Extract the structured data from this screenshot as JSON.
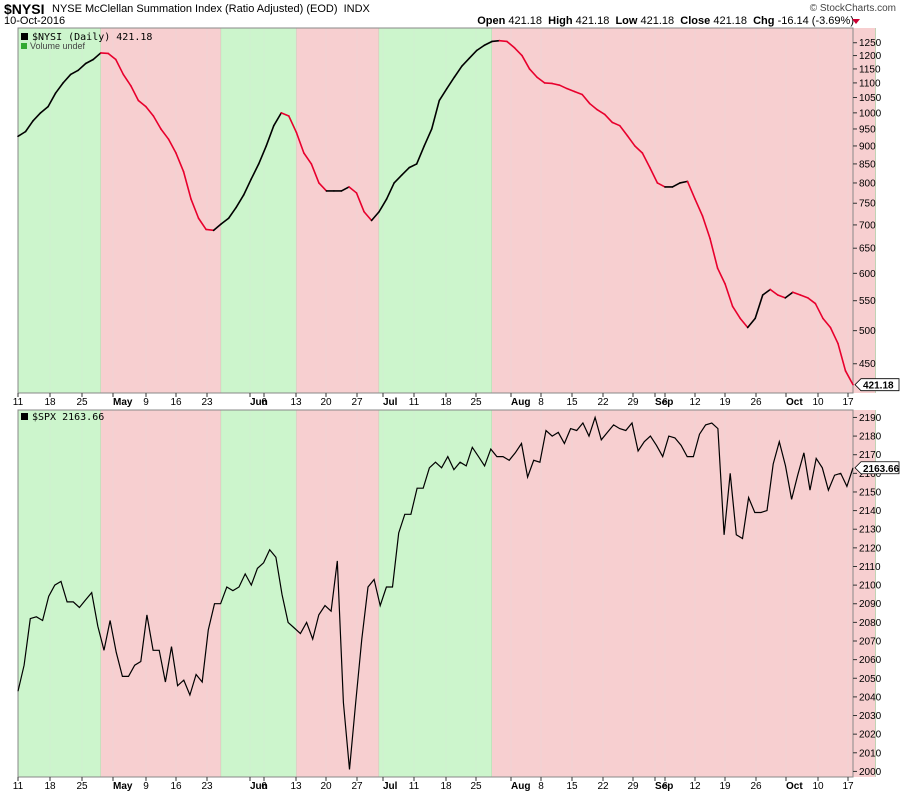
{
  "header": {
    "symbol": "$NYSI",
    "description": "NYSE McClellan Summation Index (Ratio Adjusted) (EOD)  INDX",
    "brand": "© StockCharts.com",
    "date": "10-Oct-2016",
    "open_label": "Open",
    "open": "421.18",
    "high_label": "High",
    "high": "421.18",
    "low_label": "Low",
    "low": "421.18",
    "close_label": "Close",
    "close": "421.18",
    "chg_label": "Chg",
    "chg": "-16.14 (-3.69%)"
  },
  "colors": {
    "green_band": "#ccf5cc",
    "red_band": "#f7cfd0",
    "up_line": "#000000",
    "down_line": "#e8002d",
    "spx_line": "#000000"
  },
  "x_ticks": [
    "11",
    "18",
    "25",
    "May",
    "9",
    "16",
    "23",
    "Jun",
    "6",
    "13",
    "20",
    "27",
    "Jul",
    "11",
    "18",
    "25",
    "Aug",
    "8",
    "15",
    "22",
    "29",
    "Sep",
    "6",
    "12",
    "19",
    "26",
    "Oct",
    "10",
    "17"
  ],
  "chart_data": [
    {
      "type": "line",
      "legend": [
        "$NYSI (Daily) 421.18",
        "Volume undef"
      ],
      "current_value_label": "421.18",
      "y_scale": "log",
      "ylim": [
        410,
        1310
      ],
      "y_ticks": [
        450,
        500,
        550,
        600,
        650,
        700,
        750,
        800,
        850,
        900,
        950,
        1000,
        1050,
        1100,
        1150,
        1200,
        1250
      ],
      "bands": [
        {
          "color": "green",
          "from_index": 0,
          "to_index": 11
        },
        {
          "color": "red",
          "from_index": 11,
          "to_index": 27
        },
        {
          "color": "green",
          "from_index": 27,
          "to_index": 37
        },
        {
          "color": "red",
          "from_index": 37,
          "to_index": 48
        },
        {
          "color": "green",
          "from_index": 48,
          "to_index": 63
        },
        {
          "color": "red",
          "from_index": 63,
          "to_index": 114
        }
      ],
      "values": [
        928,
        942,
        975,
        1000,
        1020,
        1065,
        1100,
        1130,
        1145,
        1170,
        1185,
        1210,
        1208,
        1185,
        1130,
        1090,
        1040,
        1020,
        990,
        950,
        920,
        880,
        830,
        760,
        715,
        690,
        688,
        702,
        715,
        740,
        770,
        810,
        850,
        900,
        960,
        1000,
        990,
        940,
        880,
        850,
        800,
        780,
        780,
        780,
        790,
        775,
        730,
        710,
        730,
        760,
        800,
        820,
        840,
        850,
        900,
        950,
        1040,
        1080,
        1120,
        1160,
        1190,
        1220,
        1240,
        1255,
        1258,
        1255,
        1230,
        1200,
        1150,
        1120,
        1100,
        1098,
        1092,
        1080,
        1070,
        1060,
        1030,
        1010,
        995,
        970,
        960,
        930,
        900,
        880,
        840,
        800,
        790,
        790,
        800,
        804,
        760,
        720,
        670,
        610,
        580,
        540,
        520,
        505,
        520,
        560,
        570,
        560,
        555,
        565,
        560,
        555,
        545,
        520,
        505,
        480,
        440,
        421
      ]
    },
    {
      "type": "line",
      "legend": [
        "$SPX 2163.66"
      ],
      "current_value_label": "2163.66",
      "ylim": [
        1997,
        2194
      ],
      "y_ticks": [
        2000,
        2010,
        2020,
        2030,
        2040,
        2050,
        2060,
        2070,
        2080,
        2090,
        2100,
        2110,
        2120,
        2130,
        2140,
        2150,
        2160,
        2170,
        2180,
        2190
      ],
      "values": [
        2043,
        2057,
        2082,
        2083,
        2081,
        2094,
        2100,
        2102,
        2091,
        2091,
        2088,
        2092,
        2096,
        2078,
        2065,
        2081,
        2064,
        2051,
        2051,
        2057,
        2059,
        2084,
        2065,
        2065,
        2048,
        2067,
        2046,
        2049,
        2041,
        2052,
        2048,
        2076,
        2090,
        2090,
        2099,
        2097,
        2099,
        2106,
        2100,
        2109,
        2112,
        2119,
        2115,
        2095,
        2080,
        2077,
        2074,
        2080,
        2071,
        2084,
        2089,
        2086,
        2113,
        2037,
        2001,
        2037,
        2071,
        2099,
        2103,
        2089,
        2099,
        2099,
        2128,
        2138,
        2138,
        2152,
        2152,
        2163,
        2166,
        2163,
        2169,
        2162,
        2166,
        2164,
        2174,
        2169,
        2164,
        2173,
        2169,
        2169,
        2167,
        2171,
        2176,
        2158,
        2167,
        2166,
        2183,
        2180,
        2182,
        2176,
        2184,
        2183,
        2187,
        2180,
        2190,
        2178,
        2182,
        2186,
        2184,
        2183,
        2187,
        2172,
        2177,
        2180,
        2175,
        2169,
        2180,
        2179,
        2175,
        2169,
        2169,
        2181,
        2186,
        2187,
        2184,
        2127,
        2160,
        2127,
        2125,
        2147,
        2139,
        2139,
        2140,
        2165,
        2177,
        2164,
        2146,
        2159,
        2171,
        2151,
        2168,
        2163,
        2151,
        2159,
        2160,
        2153,
        2163
      ]
    }
  ]
}
